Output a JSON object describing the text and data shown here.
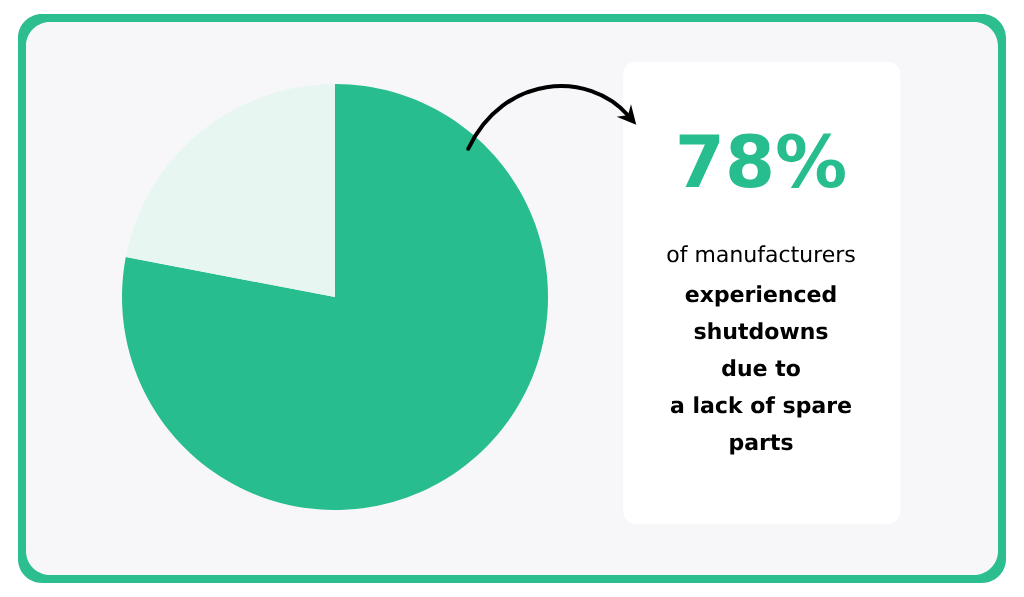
{
  "chart_data": {
    "type": "pie",
    "categories": [
      null,
      null
    ],
    "values": [
      78,
      22
    ],
    "colors": [
      "#27bd8f",
      "#e8f6f2"
    ],
    "value_labels": [
      "78%",
      null
    ],
    "annotations": [
      "of manufacturers",
      "experienced",
      "shutdowns",
      "due to",
      "a lack of spare",
      "parts"
    ]
  }
}
